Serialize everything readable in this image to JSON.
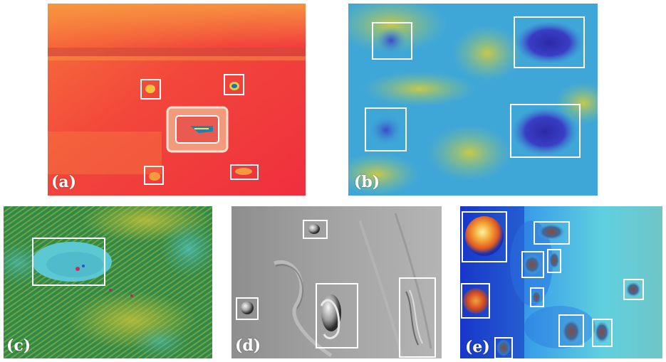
{
  "panels": [
    {
      "id": "a",
      "label": "(a)"
    },
    {
      "id": "b",
      "label": "(b)"
    },
    {
      "id": "c",
      "label": "(c)"
    },
    {
      "id": "d",
      "label": "(d)"
    },
    {
      "id": "e",
      "label": "(e)"
    }
  ],
  "colors": {
    "box": "#ffffff",
    "label": "#ffffff",
    "a_base": "#f2433a",
    "b_base": "#3fa6d8",
    "c_base": "#2e8a4e",
    "d_base": "#9a9a9a",
    "e_base": "#2f7fe0"
  }
}
